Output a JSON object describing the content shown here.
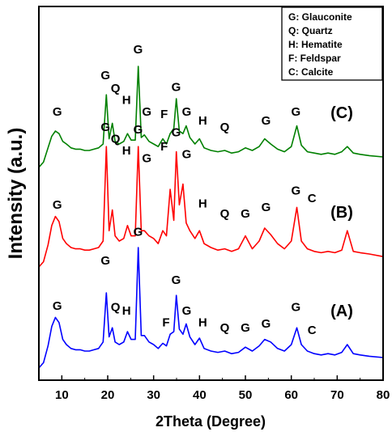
{
  "chart_data": {
    "type": "line",
    "xlabel": "2Theta (Degree)",
    "ylabel": "Intensity (a.u.)",
    "xlim": [
      5,
      80
    ],
    "xticks": [
      10,
      20,
      30,
      40,
      50,
      60,
      70,
      80
    ],
    "y_tick_labels_shown": false,
    "legend_position": "top-right",
    "legend": [
      "G: Glauconite",
      "Q: Quartz",
      "H: Hematite",
      "F: Feldspar",
      "C: Calcite"
    ],
    "series": [
      {
        "name": "(A)",
        "color": "#0000ff",
        "baseline": 0,
        "x": [
          5,
          6,
          7,
          7.8,
          8.6,
          9.4,
          10.2,
          11,
          12,
          13,
          14,
          15,
          16,
          17,
          18,
          19,
          19.7,
          20.3,
          21,
          21.6,
          22.5,
          23.5,
          24.3,
          25.1,
          26,
          26.65,
          27.3,
          28,
          29,
          30,
          31,
          32,
          32.8,
          33.6,
          34.4,
          34.95,
          35.6,
          36.4,
          37.1,
          37.9,
          39,
          40,
          41,
          42.5,
          44,
          45.5,
          47,
          48.5,
          50,
          51.5,
          53,
          54.2,
          55.5,
          57,
          58.5,
          60,
          61.2,
          62.2,
          63.5,
          65,
          66.5,
          68,
          69.5,
          71,
          72.2,
          73.5,
          75,
          77,
          80
        ],
        "y": [
          0.02,
          0.06,
          0.19,
          0.34,
          0.41,
          0.37,
          0.24,
          0.2,
          0.17,
          0.16,
          0.16,
          0.15,
          0.15,
          0.16,
          0.17,
          0.22,
          0.6,
          0.26,
          0.33,
          0.22,
          0.2,
          0.22,
          0.3,
          0.24,
          0.24,
          0.95,
          0.27,
          0.27,
          0.22,
          0.2,
          0.17,
          0.21,
          0.19,
          0.28,
          0.3,
          0.58,
          0.32,
          0.28,
          0.36,
          0.26,
          0.2,
          0.25,
          0.17,
          0.15,
          0.14,
          0.15,
          0.13,
          0.14,
          0.18,
          0.15,
          0.19,
          0.24,
          0.22,
          0.17,
          0.15,
          0.2,
          0.33,
          0.2,
          0.15,
          0.13,
          0.12,
          0.13,
          0.12,
          0.14,
          0.2,
          0.13,
          0.12,
          0.11,
          0.1
        ]
      },
      {
        "name": "(B)",
        "color": "#ff0000",
        "baseline": 0.78,
        "x": [
          5,
          6,
          7,
          7.8,
          8.6,
          9.4,
          10.2,
          11,
          12,
          13,
          14,
          15,
          16,
          17,
          18,
          19,
          19.7,
          20.3,
          21,
          21.6,
          22.5,
          23.5,
          24.3,
          25.1,
          26,
          26.65,
          27.3,
          28,
          29,
          30,
          31,
          32,
          32.8,
          33.6,
          34.4,
          34.95,
          35.6,
          36.4,
          37.1,
          37.9,
          39,
          40,
          41,
          42.5,
          44,
          45.5,
          47,
          48.5,
          50,
          51.5,
          53,
          54.2,
          55.5,
          57,
          58.5,
          60,
          61.2,
          62.2,
          63.5,
          65,
          66.5,
          68,
          69.5,
          71,
          72.2,
          73.5,
          75,
          77,
          80
        ],
        "y": [
          0.02,
          0.06,
          0.19,
          0.34,
          0.41,
          0.37,
          0.24,
          0.2,
          0.17,
          0.16,
          0.16,
          0.15,
          0.15,
          0.16,
          0.17,
          0.22,
          0.95,
          0.3,
          0.46,
          0.26,
          0.22,
          0.24,
          0.34,
          0.26,
          0.26,
          0.95,
          0.3,
          0.3,
          0.26,
          0.24,
          0.2,
          0.3,
          0.26,
          0.62,
          0.38,
          0.91,
          0.5,
          0.66,
          0.36,
          0.3,
          0.24,
          0.3,
          0.2,
          0.17,
          0.15,
          0.16,
          0.14,
          0.16,
          0.26,
          0.16,
          0.22,
          0.32,
          0.27,
          0.2,
          0.16,
          0.22,
          0.48,
          0.22,
          0.16,
          0.14,
          0.13,
          0.14,
          0.13,
          0.15,
          0.3,
          0.14,
          0.13,
          0.12,
          0.1
        ]
      },
      {
        "name": "(C)",
        "color": "#008000",
        "baseline": 1.55,
        "x": [
          5,
          6,
          7,
          7.8,
          8.6,
          9.4,
          10.2,
          11,
          12,
          13,
          14,
          15,
          16,
          17,
          18,
          19,
          19.7,
          20.3,
          21,
          21.6,
          22.5,
          23.5,
          24.3,
          25.1,
          26,
          26.65,
          27.3,
          28,
          29,
          30,
          31,
          32,
          32.8,
          33.6,
          34.4,
          34.95,
          35.6,
          36.4,
          37.1,
          37.9,
          39,
          40,
          41,
          42.5,
          44,
          45.5,
          47,
          48.5,
          50,
          51.5,
          53,
          54.2,
          55.5,
          57,
          58.5,
          60,
          61.2,
          62.2,
          63.5,
          65,
          66.5,
          68,
          69.5,
          71,
          72.2,
          73.5,
          75,
          77,
          80
        ],
        "y": [
          0.02,
          0.06,
          0.17,
          0.26,
          0.3,
          0.28,
          0.22,
          0.2,
          0.17,
          0.16,
          0.16,
          0.15,
          0.15,
          0.16,
          0.17,
          0.2,
          0.58,
          0.24,
          0.36,
          0.22,
          0.2,
          0.22,
          0.28,
          0.23,
          0.23,
          0.8,
          0.25,
          0.27,
          0.22,
          0.2,
          0.18,
          0.24,
          0.2,
          0.28,
          0.32,
          0.55,
          0.3,
          0.28,
          0.34,
          0.25,
          0.2,
          0.24,
          0.17,
          0.15,
          0.14,
          0.15,
          0.13,
          0.14,
          0.17,
          0.15,
          0.18,
          0.24,
          0.2,
          0.16,
          0.14,
          0.18,
          0.34,
          0.19,
          0.14,
          0.13,
          0.12,
          0.13,
          0.12,
          0.14,
          0.18,
          0.13,
          0.12,
          0.11,
          0.1
        ]
      }
    ],
    "annotations": [
      {
        "text": "G",
        "x": 9,
        "y": 0.47
      },
      {
        "text": "G",
        "x": 19.5,
        "y": 0.82
      },
      {
        "text": "Q",
        "x": 21.7,
        "y": 0.46
      },
      {
        "text": "H",
        "x": 24.1,
        "y": 0.43
      },
      {
        "text": "G",
        "x": 26.6,
        "y": 1.04
      },
      {
        "text": "F",
        "x": 32.7,
        "y": 0.34
      },
      {
        "text": "G",
        "x": 34.9,
        "y": 0.67
      },
      {
        "text": "G",
        "x": 37.2,
        "y": 0.43
      },
      {
        "text": "H",
        "x": 40.7,
        "y": 0.34
      },
      {
        "text": "Q",
        "x": 45.5,
        "y": 0.3
      },
      {
        "text": "G",
        "x": 50,
        "y": 0.3
      },
      {
        "text": "G",
        "x": 54.5,
        "y": 0.33
      },
      {
        "text": "G",
        "x": 61,
        "y": 0.46
      },
      {
        "text": "C",
        "x": 64.5,
        "y": 0.28
      },
      {
        "text": "G",
        "x": 9,
        "y": 1.25
      },
      {
        "text": "G",
        "x": 19.5,
        "y": 1.85
      },
      {
        "text": "Q",
        "x": 21.7,
        "y": 1.76
      },
      {
        "text": "H",
        "x": 24.1,
        "y": 1.67
      },
      {
        "text": "G",
        "x": 26.6,
        "y": 1.83
      },
      {
        "text": "G",
        "x": 28.5,
        "y": 1.61
      },
      {
        "text": "F",
        "x": 32.3,
        "y": 1.7
      },
      {
        "text": "G",
        "x": 34.9,
        "y": 1.81
      },
      {
        "text": "G",
        "x": 37.2,
        "y": 1.64
      },
      {
        "text": "H",
        "x": 40.7,
        "y": 1.26
      },
      {
        "text": "Q",
        "x": 45.5,
        "y": 1.18
      },
      {
        "text": "G",
        "x": 50,
        "y": 1.18
      },
      {
        "text": "G",
        "x": 54.5,
        "y": 1.23
      },
      {
        "text": "G",
        "x": 61,
        "y": 1.36
      },
      {
        "text": "C",
        "x": 64.5,
        "y": 1.3
      },
      {
        "text": "G",
        "x": 9,
        "y": 1.97
      },
      {
        "text": "G",
        "x": 19.5,
        "y": 2.25
      },
      {
        "text": "Q",
        "x": 21.7,
        "y": 2.15
      },
      {
        "text": "H",
        "x": 24.1,
        "y": 2.06
      },
      {
        "text": "G",
        "x": 26.6,
        "y": 2.45
      },
      {
        "text": "G",
        "x": 28.5,
        "y": 1.97
      },
      {
        "text": "F",
        "x": 32.3,
        "y": 1.95
      },
      {
        "text": "G",
        "x": 34.9,
        "y": 2.16
      },
      {
        "text": "G",
        "x": 37.2,
        "y": 1.97
      },
      {
        "text": "H",
        "x": 40.7,
        "y": 1.9
      },
      {
        "text": "Q",
        "x": 45.5,
        "y": 1.85
      },
      {
        "text": "G",
        "x": 54.5,
        "y": 1.9
      },
      {
        "text": "G",
        "x": 61,
        "y": 1.97
      }
    ],
    "series_labels": [
      {
        "text": "(A)",
        "x": 71,
        "y": 0.42
      },
      {
        "text": "(B)",
        "x": 71,
        "y": 1.18
      },
      {
        "text": "(C)",
        "x": 71,
        "y": 1.95
      }
    ]
  }
}
